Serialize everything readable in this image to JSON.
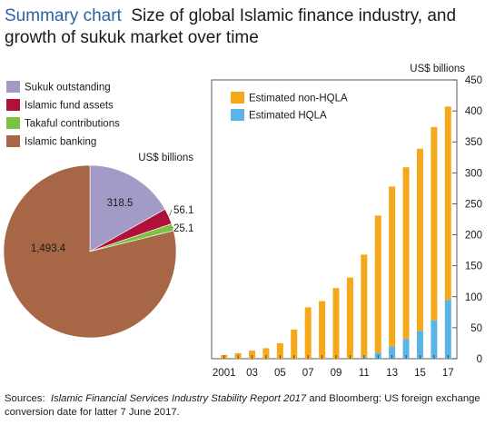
{
  "title_lead": "Summary chart",
  "title_rest": "Size of global Islamic finance industry, and growth of sukuk market over time",
  "source": {
    "prefix": "Sources:",
    "report": "Islamic Financial Services Industry Stability Report 2017",
    "suffix": "and Bloomberg:  US foreign exchange conversion date for latter 7 June 2017."
  },
  "chart_data": [
    {
      "type": "pie",
      "unit": "US$ billions",
      "legend_position": "top-left",
      "slices": [
        {
          "label": "Sukuk outstanding",
          "value": 318.5,
          "value_label": "318.5",
          "color": "#a49ac8"
        },
        {
          "label": "Islamic fund assets",
          "value": 56.1,
          "value_label": "56.1",
          "color": "#b0103a"
        },
        {
          "label": "Takaful contributions",
          "value": 25.1,
          "value_label": "25.1",
          "color": "#7cc242"
        },
        {
          "label": "Islamic banking",
          "value": 1493.4,
          "value_label": "1,493.4",
          "color": "#a76646"
        }
      ]
    },
    {
      "type": "bar",
      "stacked": true,
      "ylabel": "US$ billions",
      "ylim": [
        0,
        450
      ],
      "yticks": [
        0,
        50,
        100,
        150,
        200,
        250,
        300,
        350,
        400,
        450
      ],
      "x": [
        2001,
        2002,
        2003,
        2004,
        2005,
        2006,
        2007,
        2008,
        2009,
        2010,
        2011,
        2012,
        2013,
        2014,
        2015,
        2016,
        2017
      ],
      "xtick_labels": [
        "2001",
        "",
        "03",
        "",
        "05",
        "",
        "07",
        "",
        "09",
        "",
        "11",
        "",
        "13",
        "",
        "15",
        "",
        "17"
      ],
      "legend_position": "top-left",
      "series": [
        {
          "name": "Estimated HQLA",
          "color": "#5bb4e6",
          "values": [
            0,
            0,
            0,
            0,
            0,
            0,
            0,
            0,
            0,
            0,
            2,
            10,
            20,
            32,
            45,
            62,
            95
          ]
        },
        {
          "name": "Estimated non-HQLA",
          "color": "#f6a81c",
          "values": [
            6,
            9,
            13,
            17,
            25,
            47,
            83,
            93,
            114,
            131,
            166,
            221,
            258,
            277,
            294,
            312,
            312
          ]
        }
      ]
    }
  ]
}
